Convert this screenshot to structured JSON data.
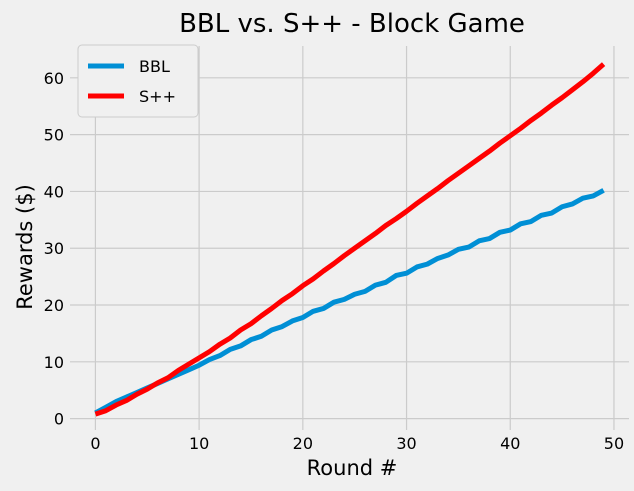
{
  "chart_data": {
    "type": "line",
    "title": "BBL vs. S++ - Block Game",
    "xlabel": "Round #",
    "ylabel": "Rewards ($)",
    "xlim": [
      -2.45,
      51.45
    ],
    "ylim": [
      -2.0,
      65.6
    ],
    "xticks": [
      0,
      10,
      20,
      30,
      40,
      50
    ],
    "yticks": [
      0,
      10,
      20,
      30,
      40,
      50,
      60
    ],
    "grid": true,
    "legend_position": "top-left",
    "x": [
      0,
      1,
      2,
      3,
      4,
      5,
      6,
      7,
      8,
      9,
      10,
      11,
      12,
      13,
      14,
      15,
      16,
      17,
      18,
      19,
      20,
      21,
      22,
      23,
      24,
      25,
      26,
      27,
      28,
      29,
      30,
      31,
      32,
      33,
      34,
      35,
      36,
      37,
      38,
      39,
      40,
      41,
      42,
      43,
      44,
      45,
      46,
      47,
      48,
      49
    ],
    "series": [
      {
        "name": "BBL",
        "color": "#008fd5",
        "values": [
          1.0,
          2.0,
          3.0,
          3.8,
          4.6,
          5.4,
          6.2,
          7.0,
          7.8,
          8.6,
          9.4,
          10.4,
          11.1,
          12.2,
          12.8,
          13.9,
          14.5,
          15.6,
          16.2,
          17.2,
          17.8,
          18.9,
          19.4,
          20.5,
          21.0,
          21.9,
          22.4,
          23.5,
          24.0,
          25.2,
          25.6,
          26.7,
          27.2,
          28.2,
          28.8,
          29.8,
          30.2,
          31.3,
          31.7,
          32.8,
          33.2,
          34.3,
          34.7,
          35.8,
          36.2,
          37.3,
          37.8,
          38.8,
          39.2,
          40.2
        ]
      },
      {
        "name": "S++",
        "color": "#ff0000",
        "values": [
          0.8,
          1.4,
          2.4,
          3.2,
          4.3,
          5.2,
          6.3,
          7.2,
          8.5,
          9.6,
          10.7,
          11.8,
          13.1,
          14.2,
          15.6,
          16.7,
          18.1,
          19.4,
          20.8,
          22.0,
          23.4,
          24.6,
          26.0,
          27.3,
          28.7,
          30.0,
          31.3,
          32.6,
          34.0,
          35.2,
          36.5,
          37.9,
          39.2,
          40.5,
          41.9,
          43.2,
          44.5,
          45.8,
          47.1,
          48.5,
          49.8,
          51.1,
          52.5,
          53.8,
          55.2,
          56.5,
          57.9,
          59.3,
          60.8,
          62.4
        ]
      }
    ]
  }
}
